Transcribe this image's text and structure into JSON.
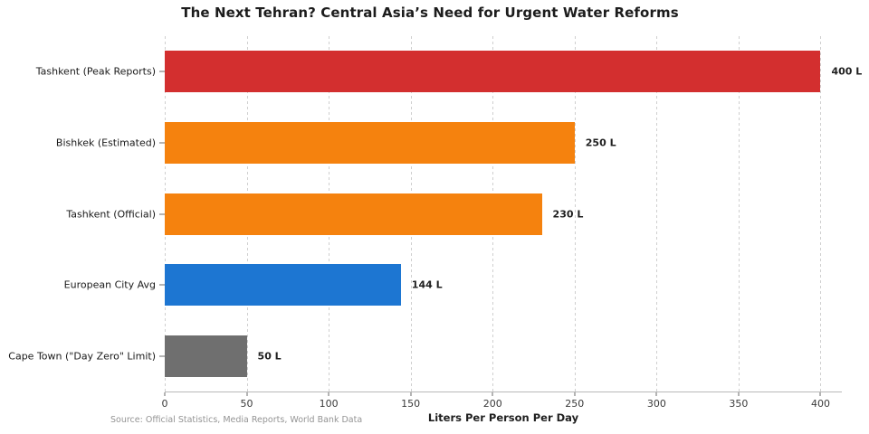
{
  "chart_data": {
    "type": "bar",
    "orientation": "horizontal",
    "title": "The Next Tehran? Central Asia’s Need for Urgent Water Reforms",
    "xlabel": "Liters Per Person Per Day",
    "source": "Source: Official Statistics, Media Reports, World Bank Data",
    "categories": [
      "Tashkent (Peak Reports)",
      "Bishkek (Estimated)",
      "Tashkent (Official)",
      "European City Avg",
      "Cape Town (\"Day Zero\" Limit)"
    ],
    "values": [
      400,
      250,
      230,
      144,
      50
    ],
    "value_labels": [
      "400 L",
      "250 L",
      "230 L",
      "144 L",
      "50 L"
    ],
    "bar_colors": [
      "#d32f2f",
      "#f5820e",
      "#f5820e",
      "#1d76d2",
      "#6f6f6f"
    ],
    "xlim": [
      0,
      413
    ],
    "xticks": [
      0,
      50,
      100,
      150,
      200,
      250,
      300,
      350,
      400
    ],
    "grid": "vertical-dashed",
    "legend": "none"
  }
}
